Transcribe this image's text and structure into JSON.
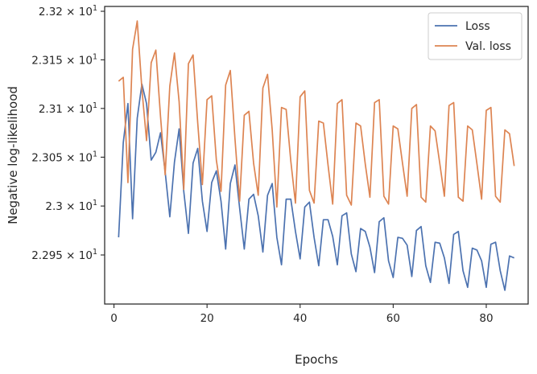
{
  "chart_data": {
    "type": "line",
    "xlabel": "Epochs",
    "ylabel": "Negative log-likelihood",
    "xlim": [
      -2,
      89
    ],
    "ylim": [
      22.9,
      23.205
    ],
    "y_scale": "log",
    "xticks": [
      0,
      20,
      40,
      60,
      80
    ],
    "xtick_labels": [
      "0",
      "20",
      "40",
      "60",
      "80"
    ],
    "yticks": [
      22.95,
      23.0,
      23.05,
      23.1,
      23.15,
      23.2
    ],
    "ytick_labels": [
      {
        "mant": "2.295",
        "exp": "1"
      },
      {
        "mant": "2.3",
        "exp": "1"
      },
      {
        "mant": "2.305",
        "exp": "1"
      },
      {
        "mant": "2.31",
        "exp": "1"
      },
      {
        "mant": "2.315",
        "exp": "1"
      },
      {
        "mant": "2.32",
        "exp": "1"
      }
    ],
    "tick_times": "×",
    "tick_base": "10",
    "grid": false,
    "legend_position": "top-right",
    "series": [
      {
        "name": "Loss",
        "color": "#4c72b0",
        "x": [
          1,
          2,
          3,
          4,
          5,
          6,
          7,
          8,
          9,
          10,
          11,
          12,
          13,
          14,
          15,
          16,
          17,
          18,
          19,
          20,
          21,
          22,
          23,
          24,
          25,
          26,
          27,
          28,
          29,
          30,
          31,
          32,
          33,
          34,
          35,
          36,
          37,
          38,
          39,
          40,
          41,
          42,
          43,
          44,
          45,
          46,
          47,
          48,
          49,
          50,
          51,
          52,
          53,
          54,
          55,
          56,
          57,
          58,
          59,
          60,
          61,
          62,
          63,
          64,
          65,
          66,
          67,
          68,
          69,
          70,
          71,
          72,
          73,
          74,
          75,
          76,
          77,
          78,
          79,
          80,
          81,
          82,
          83,
          84,
          85,
          86
        ],
        "y": [
          22.968,
          23.065,
          23.105,
          22.987,
          23.09,
          23.125,
          23.105,
          23.047,
          23.055,
          23.075,
          23.035,
          22.989,
          23.045,
          23.079,
          23.015,
          22.972,
          23.044,
          23.059,
          23.005,
          22.974,
          23.024,
          23.036,
          23.005,
          22.956,
          23.023,
          23.042,
          22.998,
          22.956,
          23.007,
          23.012,
          22.99,
          22.953,
          23.011,
          23.023,
          22.968,
          22.94,
          23.007,
          23.007,
          22.974,
          22.946,
          22.999,
          23.004,
          22.968,
          22.939,
          22.986,
          22.986,
          22.969,
          22.94,
          22.99,
          22.993,
          22.951,
          22.933,
          22.977,
          22.974,
          22.958,
          22.932,
          22.984,
          22.988,
          22.944,
          22.927,
          22.968,
          22.967,
          22.96,
          22.928,
          22.975,
          22.979,
          22.939,
          22.922,
          22.963,
          22.962,
          22.947,
          22.921,
          22.971,
          22.974,
          22.934,
          22.917,
          22.957,
          22.955,
          22.944,
          22.917,
          22.961,
          22.963,
          22.934,
          22.914,
          22.949,
          22.947
        ]
      },
      {
        "name": "Val. loss",
        "color": "#dd8452",
        "x": [
          1,
          2,
          3,
          4,
          5,
          6,
          7,
          8,
          9,
          10,
          11,
          12,
          13,
          14,
          15,
          16,
          17,
          18,
          19,
          20,
          21,
          22,
          23,
          24,
          25,
          26,
          27,
          28,
          29,
          30,
          31,
          32,
          33,
          34,
          35,
          36,
          37,
          38,
          39,
          40,
          41,
          42,
          43,
          44,
          45,
          46,
          47,
          48,
          49,
          50,
          51,
          52,
          53,
          54,
          55,
          56,
          57,
          58,
          59,
          60,
          61,
          62,
          63,
          64,
          65,
          66,
          67,
          68,
          69,
          70,
          71,
          72,
          73,
          74,
          75,
          76,
          77,
          78,
          79,
          80,
          81,
          82,
          83,
          84,
          85,
          86
        ],
        "y": [
          23.128,
          23.132,
          23.024,
          23.161,
          23.19,
          23.12,
          23.067,
          23.147,
          23.16,
          23.092,
          23.032,
          23.123,
          23.157,
          23.107,
          23.017,
          23.146,
          23.155,
          23.085,
          23.022,
          23.109,
          23.113,
          23.047,
          23.015,
          23.124,
          23.139,
          23.069,
          23.005,
          23.093,
          23.097,
          23.044,
          23.011,
          23.121,
          23.135,
          23.078,
          22.999,
          23.101,
          23.099,
          23.046,
          23.003,
          23.112,
          23.118,
          23.016,
          23.003,
          23.087,
          23.085,
          23.042,
          23.002,
          23.105,
          23.109,
          23.011,
          23.001,
          23.085,
          23.082,
          23.043,
          23.009,
          23.106,
          23.109,
          23.01,
          23.002,
          23.082,
          23.079,
          23.044,
          23.01,
          23.1,
          23.104,
          23.009,
          23.004,
          23.082,
          23.077,
          23.044,
          23.01,
          23.103,
          23.106,
          23.009,
          23.005,
          23.082,
          23.078,
          23.043,
          23.007,
          23.098,
          23.101,
          23.01,
          23.004,
          23.078,
          23.074,
          23.041
        ]
      }
    ]
  }
}
